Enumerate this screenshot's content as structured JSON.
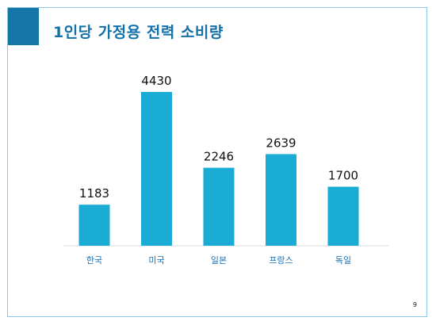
{
  "slide": {
    "title": "1인당 가정용 전력 소비량",
    "page_number": "9"
  },
  "colors": {
    "accent": "#1476a8",
    "bar": "#1bacd6",
    "title": "#1470a8",
    "category_label": "#1a6fb0",
    "border": "#8cc7e6"
  },
  "chart_data": {
    "type": "bar",
    "title": "1인당 가정용 전력 소비량",
    "categories": [
      "한국",
      "미국",
      "일본",
      "프랑스",
      "독일"
    ],
    "values": [
      1183,
      4430,
      2246,
      2639,
      1700
    ],
    "data_labels": [
      "1183",
      "4430",
      "2246",
      "2639",
      "1700"
    ],
    "xlabel": "",
    "ylabel": "",
    "ylim": [
      0,
      4430
    ],
    "grid": false,
    "legend": "none"
  }
}
